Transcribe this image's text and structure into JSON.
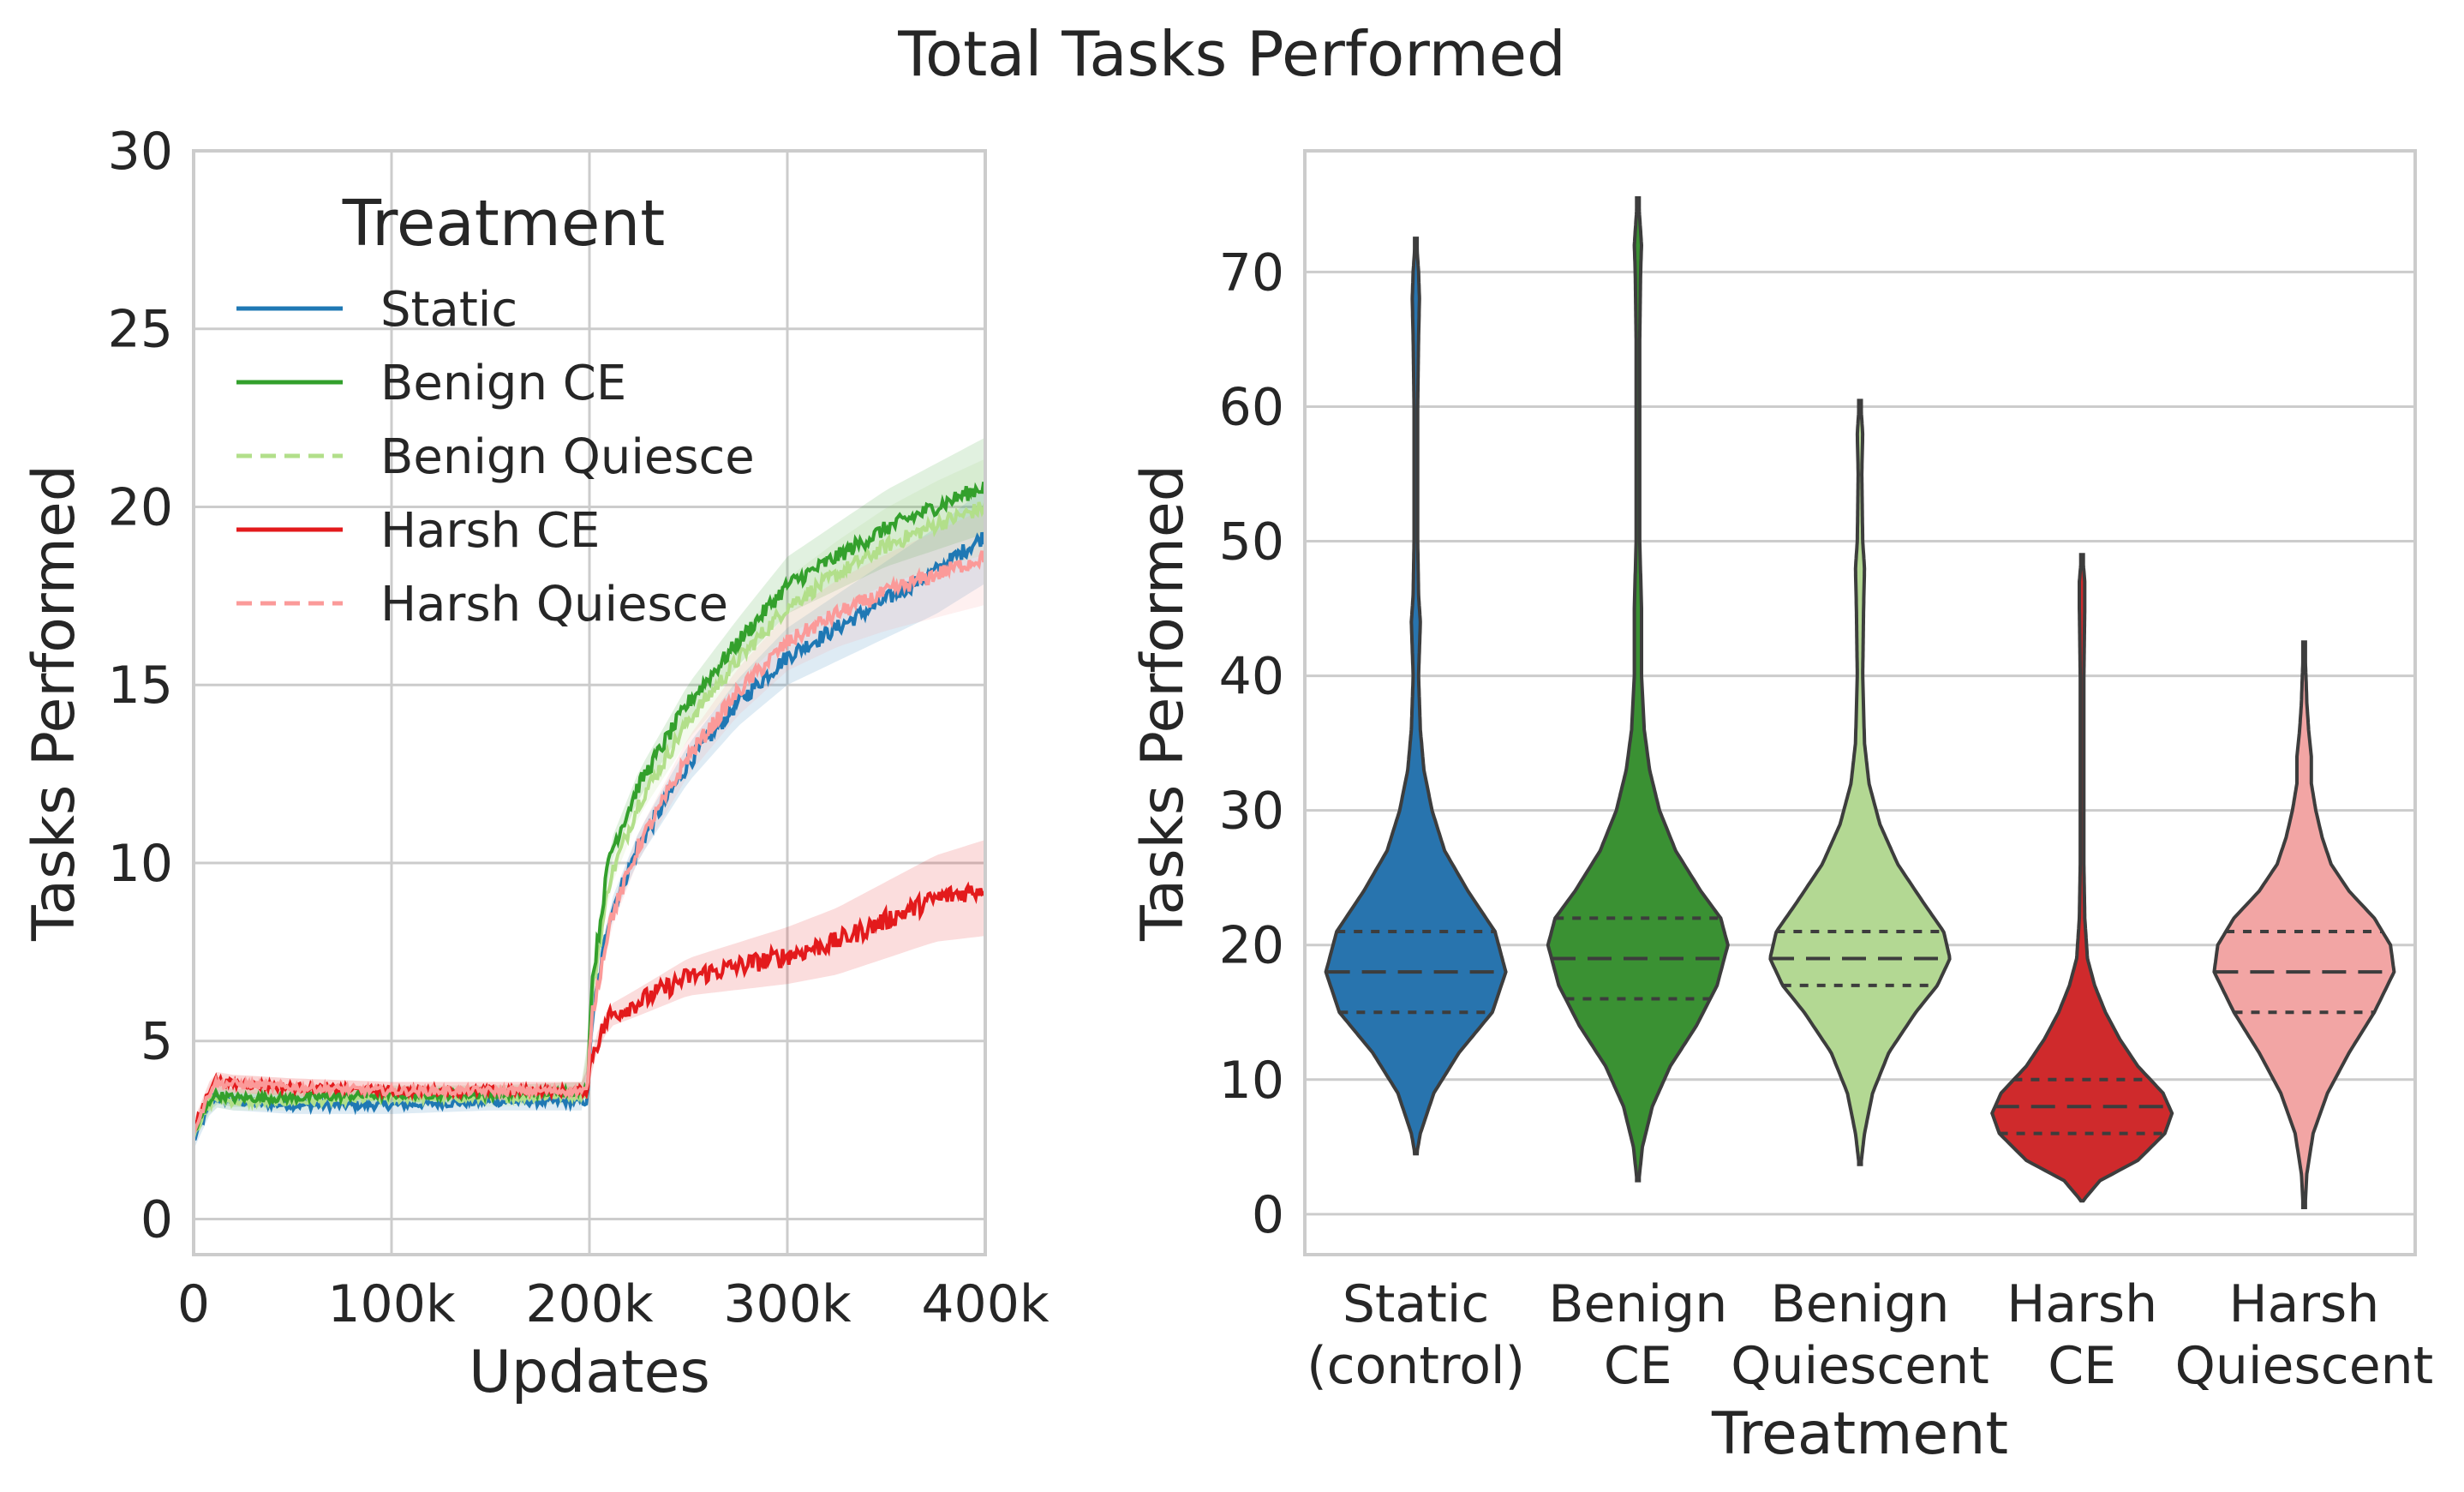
{
  "figure_title": "Total Tasks Performed",
  "colors": {
    "static": "#1f78b4",
    "benign_ce": "#33a02c",
    "benign_quiesce": "#b2df8a",
    "harsh_ce": "#e31a1c",
    "harsh_quiesce": "#fb9a99"
  },
  "chart_data": [
    {
      "type": "line",
      "title": "",
      "xlabel": "Updates",
      "ylabel": "Tasks Performed",
      "xlim": [
        0,
        400000
      ],
      "ylim": [
        -1,
        30
      ],
      "x_ticks": [
        0,
        100000,
        200000,
        300000,
        400000
      ],
      "x_tick_labels": [
        "0",
        "100k",
        "200k",
        "300k",
        "400k"
      ],
      "y_ticks": [
        0,
        5,
        10,
        15,
        20,
        25,
        30
      ],
      "y_tick_labels": [
        "0",
        "5",
        "10",
        "15",
        "20",
        "25",
        "30"
      ],
      "grid": true,
      "legend": {
        "title": "Treatment",
        "placement": "top-left",
        "entries": [
          {
            "label": "Static",
            "color": "#1f78b4",
            "dash": "solid"
          },
          {
            "label": "Benign CE",
            "color": "#33a02c",
            "dash": "solid"
          },
          {
            "label": "Benign Quiesce",
            "color": "#b2df8a",
            "dash": "dashed"
          },
          {
            "label": "Harsh CE",
            "color": "#e31a1c",
            "dash": "solid"
          },
          {
            "label": "Harsh Quiesce",
            "color": "#fb9a99",
            "dash": "dashed"
          }
        ]
      },
      "x": [
        0,
        10000,
        20000,
        50000,
        100000,
        150000,
        199000,
        201000,
        210000,
        225000,
        250000,
        275000,
        300000,
        325000,
        350000,
        375000,
        400000
      ],
      "series": [
        {
          "name": "Static",
          "color": "#1f78b4",
          "values": [
            2.2,
            3.4,
            3.3,
            3.2,
            3.2,
            3.3,
            3.3,
            5.5,
            8.5,
            10.5,
            12.8,
            14.5,
            15.8,
            16.6,
            17.4,
            18.2,
            19.2
          ]
        },
        {
          "name": "Benign CE",
          "color": "#33a02c",
          "values": [
            2.4,
            3.5,
            3.4,
            3.4,
            3.5,
            3.5,
            3.6,
            6.5,
            10.2,
            12.2,
            14.5,
            16.2,
            17.8,
            18.6,
            19.4,
            20.0,
            20.6
          ]
        },
        {
          "name": "Benign Quiesce",
          "color": "#b2df8a",
          "values": [
            2.4,
            3.4,
            3.3,
            3.3,
            3.4,
            3.4,
            3.5,
            6.2,
            9.5,
            11.7,
            14.0,
            15.7,
            17.2,
            18.1,
            18.9,
            19.5,
            20.0
          ]
        },
        {
          "name": "Harsh CE",
          "color": "#e31a1c",
          "values": [
            2.5,
            3.9,
            3.8,
            3.7,
            3.6,
            3.6,
            3.6,
            4.6,
            5.7,
            6.1,
            6.8,
            7.1,
            7.4,
            7.8,
            8.4,
            9.0,
            9.3
          ]
        },
        {
          "name": "Harsh Quiesce",
          "color": "#fb9a99",
          "values": [
            2.5,
            3.8,
            3.8,
            3.7,
            3.6,
            3.6,
            3.6,
            5.6,
            8.3,
            10.5,
            13.0,
            14.8,
            16.2,
            17.0,
            17.6,
            18.1,
            18.6
          ]
        }
      ]
    },
    {
      "type": "violin",
      "title": "",
      "xlabel": "Treatment",
      "ylabel": "Tasks Performed",
      "ylim": [
        -3,
        79
      ],
      "y_ticks": [
        0,
        10,
        20,
        30,
        40,
        50,
        60,
        70
      ],
      "y_tick_labels": [
        "0",
        "10",
        "20",
        "30",
        "40",
        "50",
        "60",
        "70"
      ],
      "grid": true,
      "categories": [
        {
          "line1": "Static",
          "line2": "(control)"
        },
        {
          "line1": "Benign",
          "line2": "CE"
        },
        {
          "line1": "Benign",
          "line2": "Quiescent"
        },
        {
          "line1": "Harsh",
          "line2": "CE"
        },
        {
          "line1": "Harsh",
          "line2": "Quiescent"
        }
      ],
      "violins": [
        {
          "color": "#2874ae",
          "min": 4.5,
          "max": 72.5,
          "q1": 15,
          "median": 18,
          "q3": 21,
          "profile": [
            [
              4.5,
              0.01
            ],
            [
              6,
              0.05
            ],
            [
              9,
              0.2
            ],
            [
              12,
              0.48
            ],
            [
              15,
              0.85
            ],
            [
              18,
              1.0
            ],
            [
              21,
              0.88
            ],
            [
              24,
              0.58
            ],
            [
              27,
              0.32
            ],
            [
              30,
              0.18
            ],
            [
              33,
              0.09
            ],
            [
              36,
              0.05
            ],
            [
              40,
              0.03
            ],
            [
              44,
              0.05
            ],
            [
              46,
              0.03
            ],
            [
              50,
              0.02
            ],
            [
              55,
              0.02
            ],
            [
              60,
              0.02
            ],
            [
              65,
              0.03
            ],
            [
              68,
              0.04
            ],
            [
              70,
              0.03
            ],
            [
              72.5,
              0.005
            ]
          ]
        },
        {
          "color": "#3a9133",
          "min": 2.5,
          "max": 75.5,
          "q1": 16,
          "median": 19,
          "q3": 22,
          "profile": [
            [
              2.5,
              0.01
            ],
            [
              5,
              0.05
            ],
            [
              8,
              0.16
            ],
            [
              11,
              0.36
            ],
            [
              14,
              0.65
            ],
            [
              17,
              0.88
            ],
            [
              20,
              1.0
            ],
            [
              22,
              0.92
            ],
            [
              24,
              0.7
            ],
            [
              27,
              0.42
            ],
            [
              30,
              0.24
            ],
            [
              33,
              0.13
            ],
            [
              36,
              0.07
            ],
            [
              40,
              0.04
            ],
            [
              45,
              0.04
            ],
            [
              50,
              0.02
            ],
            [
              55,
              0.02
            ],
            [
              60,
              0.02
            ],
            [
              65,
              0.02
            ],
            [
              70,
              0.03
            ],
            [
              72,
              0.04
            ],
            [
              75.5,
              0.005
            ]
          ]
        },
        {
          "color": "#b3d893",
          "min": 3.7,
          "max": 60.5,
          "q1": 17,
          "median": 19,
          "q3": 21,
          "profile": [
            [
              3.7,
              0.01
            ],
            [
              6,
              0.05
            ],
            [
              9,
              0.14
            ],
            [
              12,
              0.32
            ],
            [
              15,
              0.62
            ],
            [
              17,
              0.86
            ],
            [
              19,
              1.0
            ],
            [
              21,
              0.93
            ],
            [
              23,
              0.72
            ],
            [
              26,
              0.42
            ],
            [
              29,
              0.22
            ],
            [
              32,
              0.1
            ],
            [
              35,
              0.05
            ],
            [
              40,
              0.03
            ],
            [
              45,
              0.04
            ],
            [
              48,
              0.05
            ],
            [
              50,
              0.03
            ],
            [
              55,
              0.02
            ],
            [
              58,
              0.03
            ],
            [
              60.5,
              0.005
            ]
          ]
        },
        {
          "color": "#cf2a2c",
          "min": 1.0,
          "max": 49.0,
          "q1": 6,
          "median": 8,
          "q3": 10,
          "profile": [
            [
              1.0,
              0.01
            ],
            [
              2.5,
              0.2
            ],
            [
              4,
              0.62
            ],
            [
              6,
              0.92
            ],
            [
              7.5,
              1.0
            ],
            [
              9,
              0.9
            ],
            [
              11,
              0.62
            ],
            [
              13,
              0.42
            ],
            [
              15,
              0.26
            ],
            [
              17,
              0.14
            ],
            [
              19,
              0.06
            ],
            [
              22,
              0.03
            ],
            [
              26,
              0.02
            ],
            [
              30,
              0.02
            ],
            [
              35,
              0.02
            ],
            [
              40,
              0.02
            ],
            [
              45,
              0.03
            ],
            [
              47,
              0.03
            ],
            [
              49,
              0.005
            ]
          ]
        },
        {
          "color": "#f2a5a4",
          "min": 0.5,
          "max": 42.5,
          "q1": 15,
          "median": 18,
          "q3": 21,
          "profile": [
            [
              0.5,
              0.01
            ],
            [
              3,
              0.03
            ],
            [
              6,
              0.1
            ],
            [
              9,
              0.26
            ],
            [
              12,
              0.5
            ],
            [
              15,
              0.78
            ],
            [
              18,
              1.0
            ],
            [
              20,
              0.96
            ],
            [
              22,
              0.78
            ],
            [
              24,
              0.5
            ],
            [
              26,
              0.3
            ],
            [
              28,
              0.2
            ],
            [
              30,
              0.13
            ],
            [
              32,
              0.08
            ],
            [
              34,
              0.08
            ],
            [
              36,
              0.05
            ],
            [
              38,
              0.03
            ],
            [
              40,
              0.02
            ],
            [
              42.5,
              0.005
            ]
          ]
        }
      ]
    }
  ]
}
